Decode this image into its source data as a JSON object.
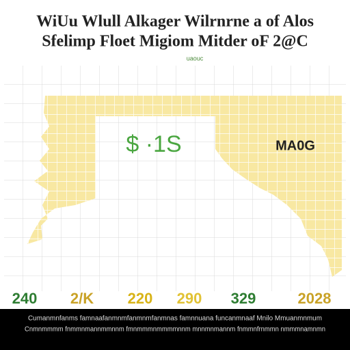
{
  "header": {
    "title_lines": [
      "WiUu Wlull Alkager Wilrnrne a of Alos",
      "Sfelimp Floet Migiom Mitder oF 2@C"
    ],
    "subtitle": "uaouc"
  },
  "annotations": {
    "left": "$ ·1S",
    "right": "MA0G"
  },
  "axis_labels": [
    "240",
    "2/K",
    "220",
    "290",
    "329",
    "2028"
  ],
  "footer": {
    "lines": [
      "Cumanmnfanms famnaafanmnmfanmnmfanmnas famnnuana funcanmnaaf Mnilo Mmuanmnmum",
      "Cnmnmmmm fnmmnmannmmnnm fmnmmmnmmmmnnm mnnmnmannm fnmmnfrnmmn nmmmnamnmn"
    ]
  }
}
